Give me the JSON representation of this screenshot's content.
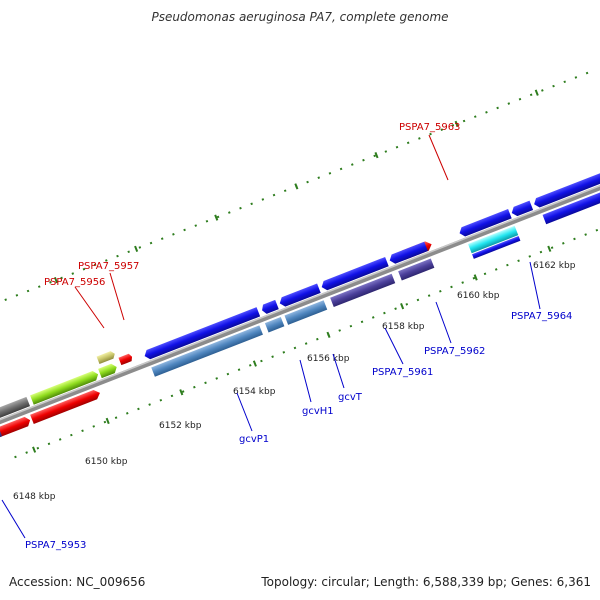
{
  "title": "Pseudomonas aeruginosa PA7, complete genome",
  "footer": {
    "accession": "Accession: NC_009656",
    "summary": "Topology: circular; Length: 6,588,339 bp; Genes: 6,361"
  },
  "colors": {
    "backbone": "#8c8c8c",
    "tick": "#2e7d1e",
    "forward_label": "#cc0000",
    "reverse_label": "#0000cc"
  },
  "kbp_labels": [
    "6148 kbp",
    "6150 kbp",
    "6152 kbp",
    "6154 kbp",
    "6156 kbp",
    "6158 kbp",
    "6160 kbp",
    "6162 kbp"
  ],
  "gene_labels": {
    "g5963": "PSPA7_5963",
    "g5957": "PSPA7_5957",
    "g5956": "PSPA7_5956",
    "g5964": "PSPA7_5964",
    "g5962": "PSPA7_5962",
    "g5961": "PSPA7_5961",
    "gcvT": "gcvT",
    "gcvH1": "gcvH1",
    "gcvP1": "gcvP1",
    "g5953": "PSPA7_5953"
  }
}
